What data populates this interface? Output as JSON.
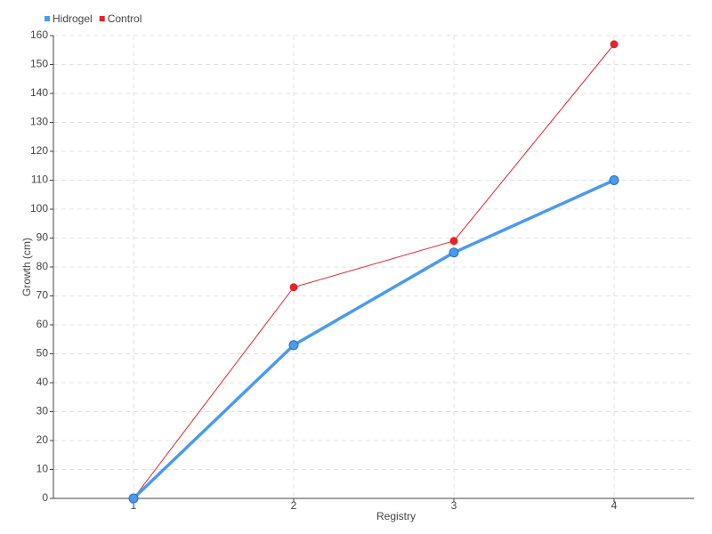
{
  "chart_data": {
    "type": "line",
    "x_label": "Registry",
    "y_label": "Growth (cm)",
    "categories": [
      "1",
      "2",
      "3",
      "4"
    ],
    "series": [
      {
        "name": "Hidrogel",
        "color": "#4a9af0",
        "values": [
          0,
          53,
          85,
          110
        ]
      },
      {
        "name": "Control",
        "color": "#e3242b",
        "values": [
          0,
          73,
          89,
          157
        ]
      }
    ],
    "ylim": [
      0,
      160
    ],
    "yticks": [
      0,
      10,
      20,
      30,
      40,
      50,
      60,
      70,
      80,
      90,
      100,
      110,
      120,
      130,
      140,
      150,
      160
    ],
    "grid": true,
    "legend": "top-left"
  }
}
